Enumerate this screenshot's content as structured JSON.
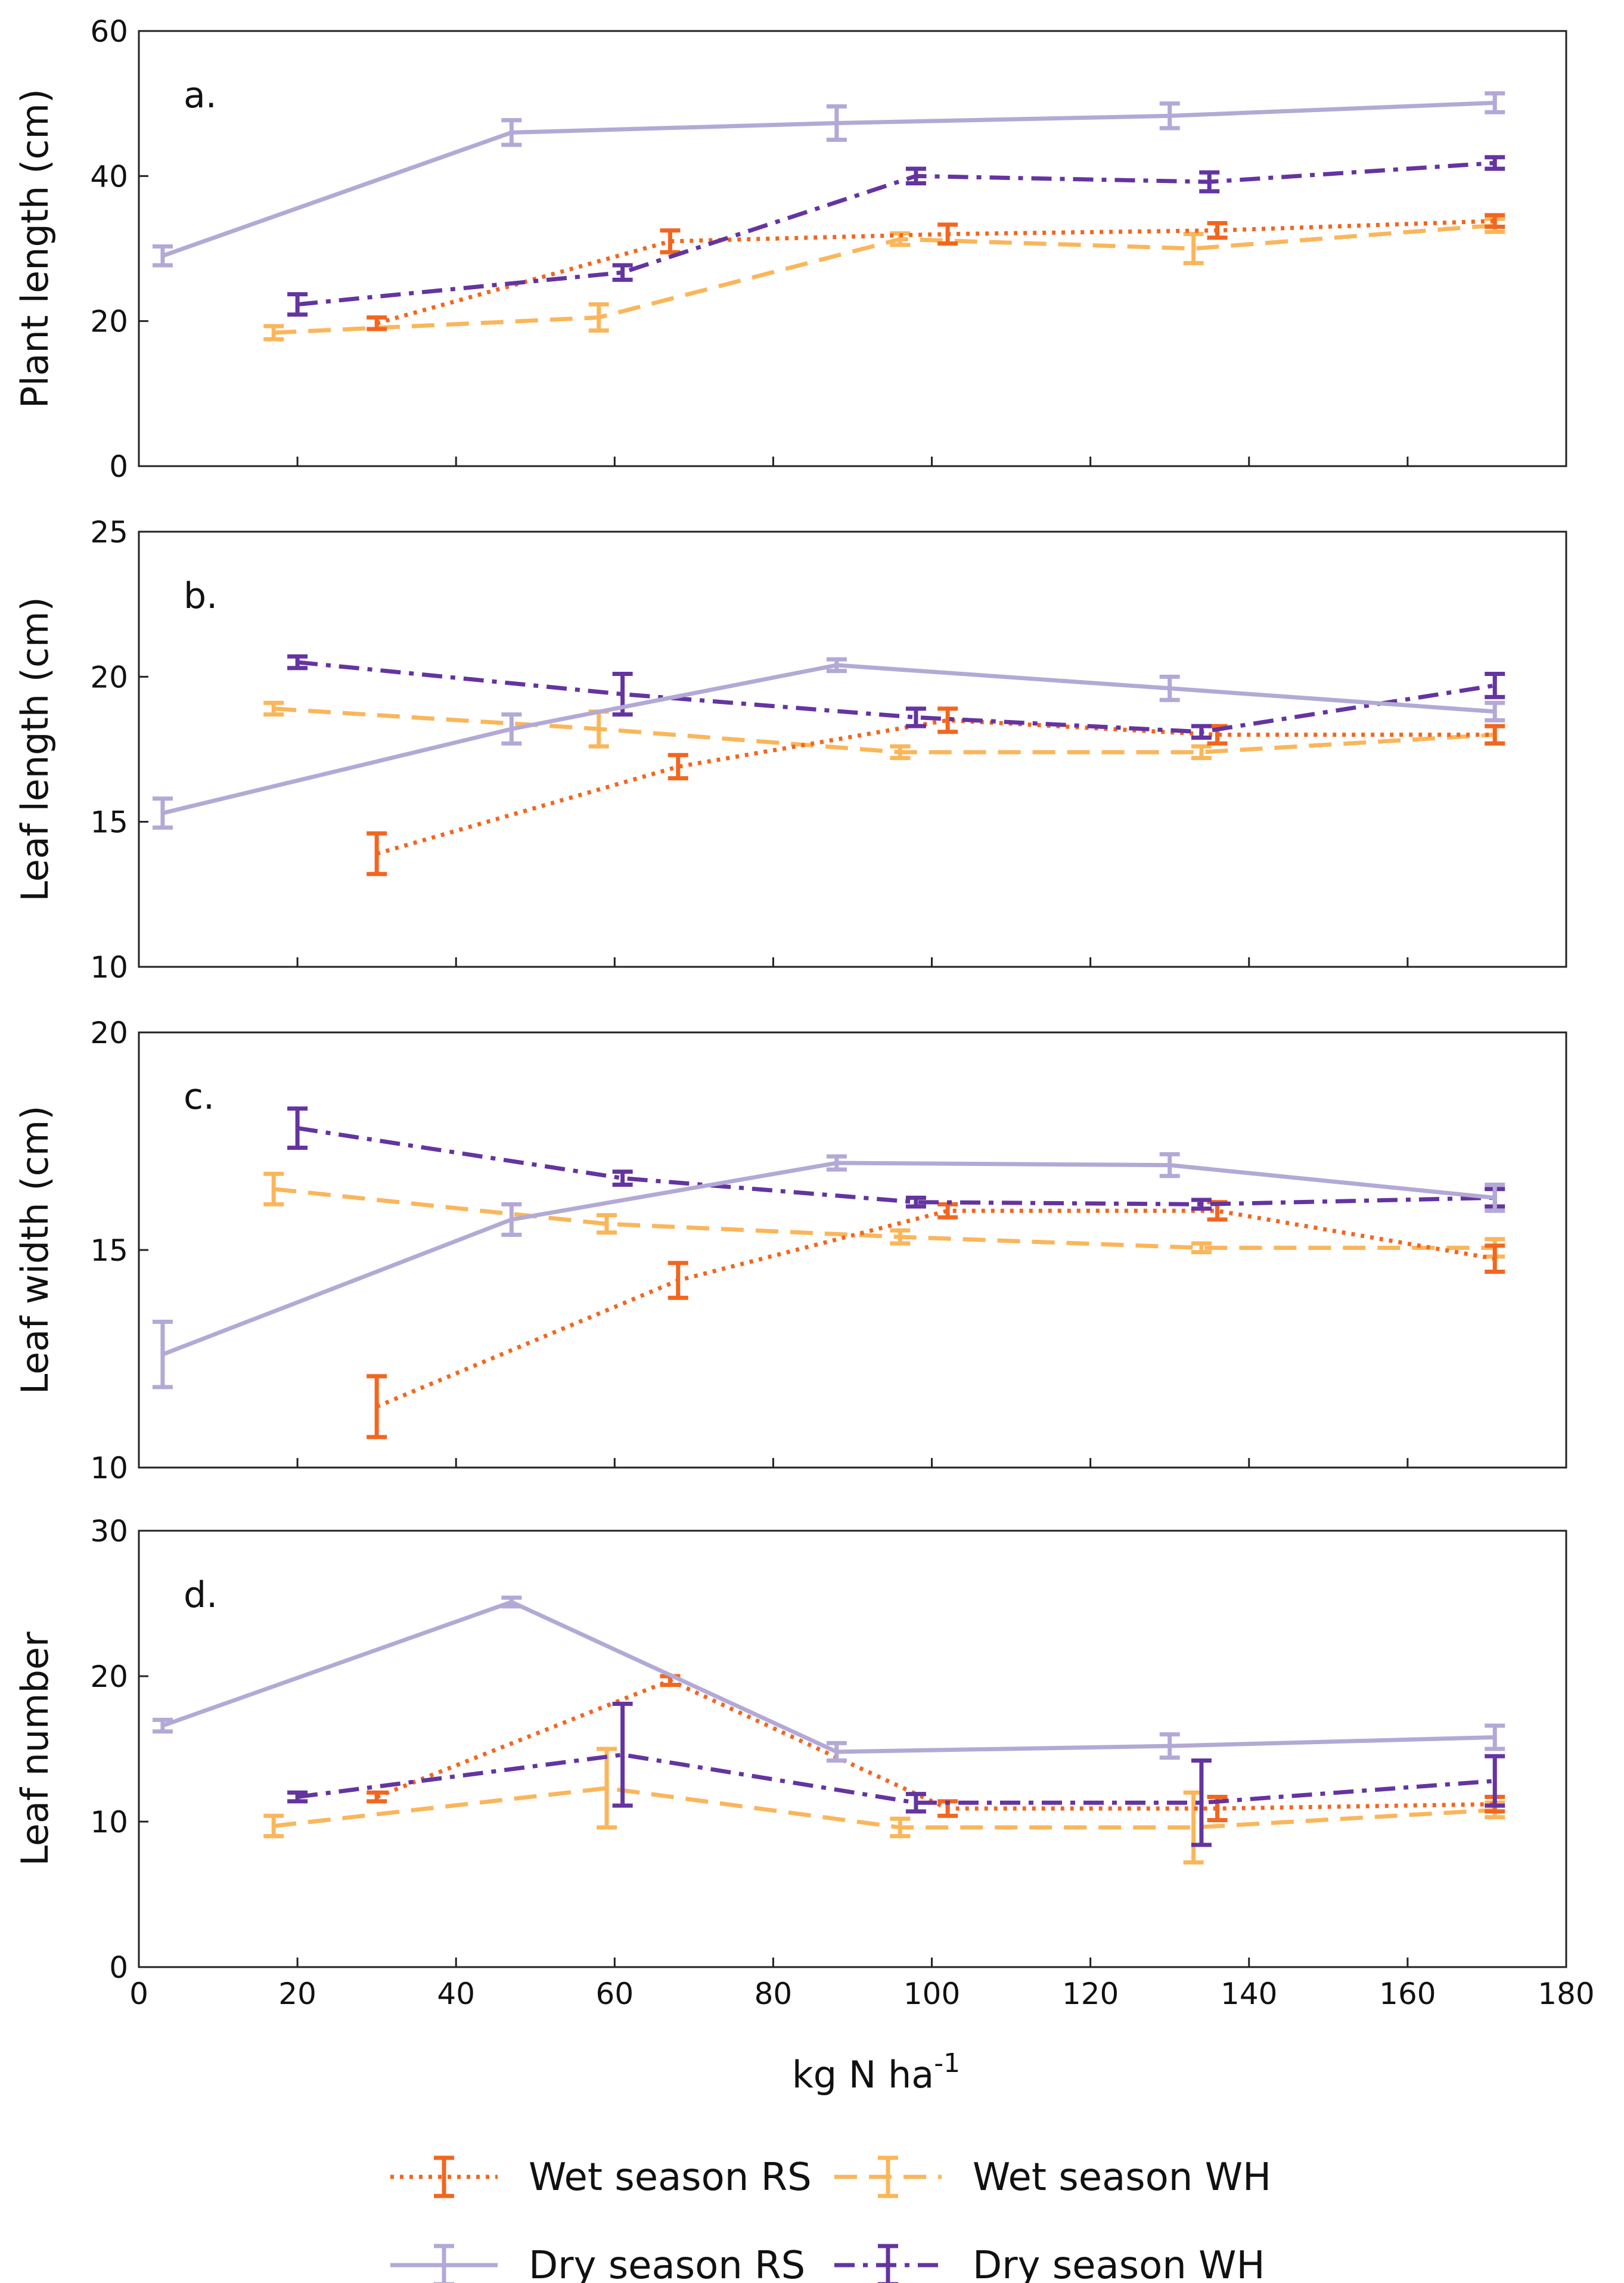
{
  "chart_data": {
    "type": "line",
    "xlabel_main": "kg N ha",
    "xlabel_sup": "-1",
    "xlim": [
      0,
      180
    ],
    "xticks": [
      0,
      20,
      40,
      60,
      80,
      100,
      120,
      140,
      160,
      180
    ],
    "legend": {
      "placement": "bottom",
      "entries": [
        {
          "series": "wet_rs",
          "label": "Wet season RS"
        },
        {
          "series": "wet_wh",
          "label": "Wet season WH"
        },
        {
          "series": "dry_rs",
          "label": "Dry season RS"
        },
        {
          "series": "dry_wh",
          "label": "Dry season WH"
        }
      ]
    },
    "styles": {
      "wet_rs": {
        "color": "#f2661f",
        "dash": "dotted"
      },
      "wet_wh": {
        "color": "#fab65a",
        "dash": "dashed"
      },
      "dry_rs": {
        "color": "#b3a9d6",
        "dash": "solid"
      },
      "dry_wh": {
        "color": "#6434a0",
        "dash": "dashdot"
      }
    },
    "panels": [
      {
        "id": "a",
        "label": "a.",
        "ylabel": "Plant length (cm)",
        "ylim": [
          0,
          60
        ],
        "yticks": [
          0,
          20,
          40,
          60
        ],
        "series": [
          {
            "key": "wet_rs",
            "points": [
              {
                "x": 30,
                "y": 19.7,
                "err": 0.8
              },
              {
                "x": 67,
                "y": 31,
                "err": 1.5
              },
              {
                "x": 102,
                "y": 32,
                "err": 1.3
              },
              {
                "x": 136,
                "y": 32.5,
                "err": 1.0
              },
              {
                "x": 171,
                "y": 33.8,
                "err": 0.8
              }
            ]
          },
          {
            "key": "wet_wh",
            "points": [
              {
                "x": 17,
                "y": 18.4,
                "err": 0.9
              },
              {
                "x": 58,
                "y": 20.5,
                "err": 1.8
              },
              {
                "x": 96,
                "y": 31.3,
                "err": 0.8
              },
              {
                "x": 133,
                "y": 30,
                "err": 2.0
              },
              {
                "x": 171,
                "y": 33.2,
                "err": 0.9
              }
            ]
          },
          {
            "key": "dry_rs",
            "points": [
              {
                "x": 3,
                "y": 29,
                "err": 1.3
              },
              {
                "x": 47,
                "y": 46,
                "err": 1.7
              },
              {
                "x": 88,
                "y": 47.3,
                "err": 2.3
              },
              {
                "x": 130,
                "y": 48.3,
                "err": 1.7
              },
              {
                "x": 171,
                "y": 50.1,
                "err": 1.3
              }
            ]
          },
          {
            "key": "dry_wh",
            "points": [
              {
                "x": 20,
                "y": 22.3,
                "err": 1.4
              },
              {
                "x": 61,
                "y": 26.7,
                "err": 1.0
              },
              {
                "x": 98,
                "y": 40,
                "err": 1.0
              },
              {
                "x": 135,
                "y": 39.2,
                "err": 1.3
              },
              {
                "x": 171,
                "y": 41.8,
                "err": 0.8
              }
            ]
          }
        ]
      },
      {
        "id": "b",
        "label": "b.",
        "ylabel": "Leaf length (cm)",
        "ylim": [
          10,
          25
        ],
        "yticks": [
          10,
          15,
          20,
          25
        ],
        "series": [
          {
            "key": "wet_rs",
            "points": [
              {
                "x": 30,
                "y": 13.9,
                "err": 0.7
              },
              {
                "x": 68,
                "y": 16.9,
                "err": 0.4
              },
              {
                "x": 102,
                "y": 18.5,
                "err": 0.4
              },
              {
                "x": 136,
                "y": 18,
                "err": 0.3
              },
              {
                "x": 171,
                "y": 18,
                "err": 0.3
              }
            ]
          },
          {
            "key": "wet_wh",
            "points": [
              {
                "x": 17,
                "y": 18.9,
                "err": 0.2
              },
              {
                "x": 58,
                "y": 18.2,
                "err": 0.6
              },
              {
                "x": 96,
                "y": 17.4,
                "err": 0.2
              },
              {
                "x": 134,
                "y": 17.4,
                "err": 0.2
              },
              {
                "x": 171,
                "y": 18,
                "err": 0.3
              }
            ]
          },
          {
            "key": "dry_rs",
            "points": [
              {
                "x": 3,
                "y": 15.3,
                "err": 0.5
              },
              {
                "x": 47,
                "y": 18.2,
                "err": 0.5
              },
              {
                "x": 88,
                "y": 20.4,
                "err": 0.2
              },
              {
                "x": 130,
                "y": 19.6,
                "err": 0.4
              },
              {
                "x": 171,
                "y": 18.8,
                "err": 0.3
              }
            ]
          },
          {
            "key": "dry_wh",
            "points": [
              {
                "x": 20,
                "y": 20.5,
                "err": 0.2
              },
              {
                "x": 61,
                "y": 19.4,
                "err": 0.7
              },
              {
                "x": 98,
                "y": 18.6,
                "err": 0.3
              },
              {
                "x": 134,
                "y": 18.1,
                "err": 0.2
              },
              {
                "x": 171,
                "y": 19.7,
                "err": 0.4
              }
            ]
          }
        ]
      },
      {
        "id": "c",
        "label": "c.",
        "ylabel": "Leaf width (cm)",
        "ylim": [
          10,
          20
        ],
        "yticks": [
          10,
          15,
          20
        ],
        "series": [
          {
            "key": "wet_rs",
            "points": [
              {
                "x": 30,
                "y": 11.4,
                "err": 0.7
              },
              {
                "x": 68,
                "y": 14.3,
                "err": 0.4
              },
              {
                "x": 102,
                "y": 15.9,
                "err": 0.15
              },
              {
                "x": 136,
                "y": 15.9,
                "err": 0.2
              },
              {
                "x": 171,
                "y": 14.8,
                "err": 0.3
              }
            ]
          },
          {
            "key": "wet_wh",
            "points": [
              {
                "x": 17,
                "y": 16.4,
                "err": 0.35
              },
              {
                "x": 59,
                "y": 15.6,
                "err": 0.2
              },
              {
                "x": 96,
                "y": 15.3,
                "err": 0.15
              },
              {
                "x": 134,
                "y": 15.05,
                "err": 0.1
              },
              {
                "x": 171,
                "y": 15.05,
                "err": 0.2
              }
            ]
          },
          {
            "key": "dry_rs",
            "points": [
              {
                "x": 3,
                "y": 12.6,
                "err": 0.75
              },
              {
                "x": 47,
                "y": 15.7,
                "err": 0.35
              },
              {
                "x": 88,
                "y": 17,
                "err": 0.15
              },
              {
                "x": 130,
                "y": 16.95,
                "err": 0.25
              },
              {
                "x": 171,
                "y": 16.2,
                "err": 0.3
              }
            ]
          },
          {
            "key": "dry_wh",
            "points": [
              {
                "x": 20,
                "y": 17.8,
                "err": 0.45
              },
              {
                "x": 61,
                "y": 16.65,
                "err": 0.15
              },
              {
                "x": 98,
                "y": 16.1,
                "err": 0.1
              },
              {
                "x": 134,
                "y": 16.05,
                "err": 0.1
              },
              {
                "x": 171,
                "y": 16.2,
                "err": 0.2
              }
            ]
          }
        ]
      },
      {
        "id": "d",
        "label": "d.",
        "ylabel": "Leaf number",
        "ylim": [
          0,
          30
        ],
        "yticks": [
          0,
          10,
          20,
          30
        ],
        "series": [
          {
            "key": "wet_rs",
            "points": [
              {
                "x": 30,
                "y": 11.7,
                "err": 0.3
              },
              {
                "x": 67,
                "y": 19.7,
                "err": 0.3
              },
              {
                "x": 102,
                "y": 10.9,
                "err": 0.5
              },
              {
                "x": 136,
                "y": 10.9,
                "err": 0.8
              },
              {
                "x": 171,
                "y": 11.2,
                "err": 0.5
              }
            ]
          },
          {
            "key": "wet_wh",
            "points": [
              {
                "x": 17,
                "y": 9.7,
                "err": 0.7
              },
              {
                "x": 59,
                "y": 12.3,
                "err": 2.7
              },
              {
                "x": 96,
                "y": 9.6,
                "err": 0.6
              },
              {
                "x": 133,
                "y": 9.6,
                "err": 2.4
              },
              {
                "x": 171,
                "y": 10.8,
                "err": 0.5
              }
            ]
          },
          {
            "key": "dry_rs",
            "points": [
              {
                "x": 3,
                "y": 16.6,
                "err": 0.4
              },
              {
                "x": 47,
                "y": 25.1,
                "err": 0.3
              },
              {
                "x": 88,
                "y": 14.8,
                "err": 0.6
              },
              {
                "x": 130,
                "y": 15.2,
                "err": 0.8
              },
              {
                "x": 171,
                "y": 15.8,
                "err": 0.8
              }
            ]
          },
          {
            "key": "dry_wh",
            "points": [
              {
                "x": 20,
                "y": 11.7,
                "err": 0.3
              },
              {
                "x": 61,
                "y": 14.6,
                "err": 3.5
              },
              {
                "x": 98,
                "y": 11.3,
                "err": 0.6
              },
              {
                "x": 134,
                "y": 11.3,
                "err": 2.9
              },
              {
                "x": 171,
                "y": 12.8,
                "err": 1.7
              }
            ]
          }
        ]
      }
    ]
  }
}
